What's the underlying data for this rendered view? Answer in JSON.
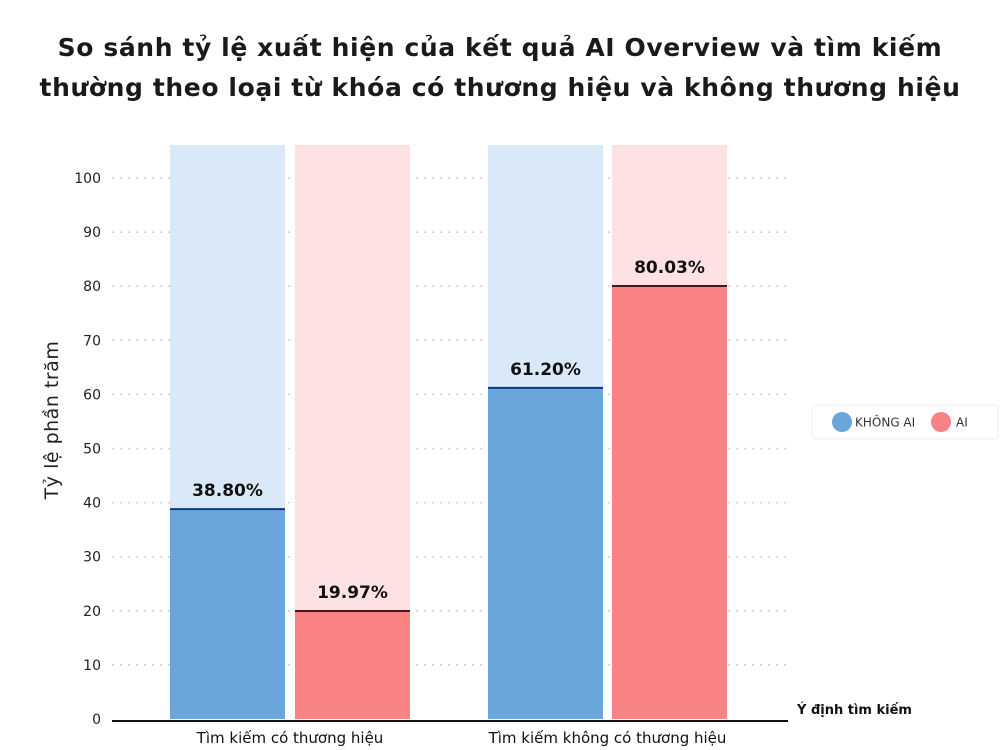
{
  "chart_data": {
    "type": "bar",
    "title": [
      "So sánh tỷ lệ xuất hiện của kết quả AI Overview và tìm kiếm",
      "thường theo loại từ khóa có thương hiệu và không thương hiệu"
    ],
    "ylabel": "Tỷ lệ phần trăm",
    "xlabel": "Ý định tìm kiếm",
    "ylim": [
      0,
      100
    ],
    "yticks": [
      0,
      10,
      20,
      30,
      40,
      50,
      60,
      70,
      80,
      90,
      100
    ],
    "categories": [
      "Tìm kiếm có thương hiệu",
      "Tìm kiếm không có thương hiệu"
    ],
    "series": [
      {
        "name": "KHÔNG AI",
        "values": [
          38.8,
          61.2
        ],
        "labels": [
          "38.80%",
          "61.20%"
        ],
        "color": "#6aa5dc",
        "track_color": "#dae9f9",
        "line_color": "#0b3a8a"
      },
      {
        "name": "AI",
        "values": [
          19.97,
          80.03
        ],
        "labels": [
          "19.97%",
          "80.03%"
        ],
        "color": "#f98285",
        "track_color": "#fee1e3",
        "line_color": "#4a1420"
      }
    ],
    "legend_position": "right",
    "grid": true
  }
}
